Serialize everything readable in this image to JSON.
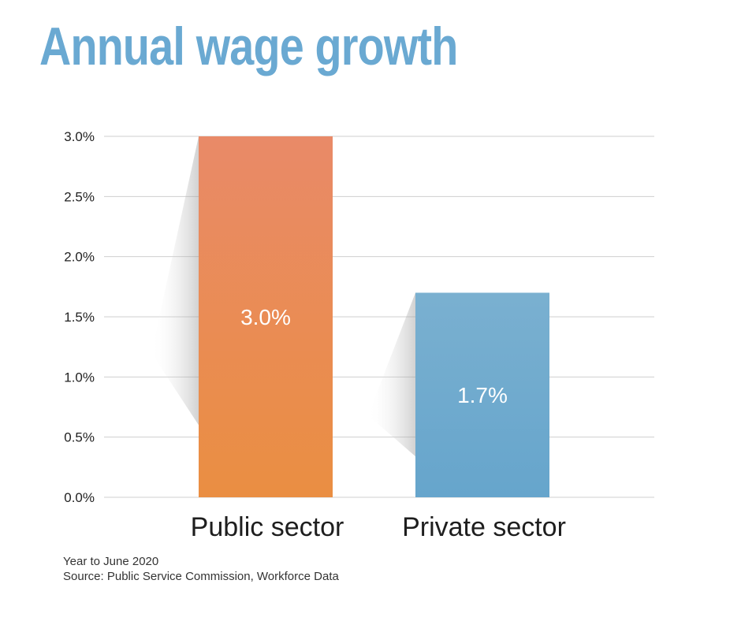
{
  "chart_data": {
    "type": "bar",
    "title": "Annual wage growth",
    "categories": [
      "Public sector",
      "Private sector"
    ],
    "values": [
      3.0,
      1.7
    ],
    "data_labels": [
      "3.0%",
      "1.7%"
    ],
    "ylim": [
      0,
      3.0
    ],
    "yticks": [
      0.0,
      0.5,
      1.0,
      1.5,
      2.0,
      2.5,
      3.0
    ],
    "ytick_labels": [
      "0.0%",
      "0.5%",
      "1.0%",
      "1.5%",
      "2.0%",
      "2.5%",
      "3.0%"
    ],
    "xlabel": "",
    "ylabel": "",
    "grid": true,
    "legend": null,
    "colors": {
      "Public sector": [
        "#e98a68",
        "#ea8e42"
      ],
      "Private sector": [
        "#7ab0d0",
        "#66a5cc"
      ]
    }
  },
  "notes": {
    "period": "Year to June 2020",
    "source": "Source: Public Service Commission, Workforce Data"
  },
  "colors": {
    "title": "#6aa9d2",
    "grid": "#cfcfcf"
  }
}
